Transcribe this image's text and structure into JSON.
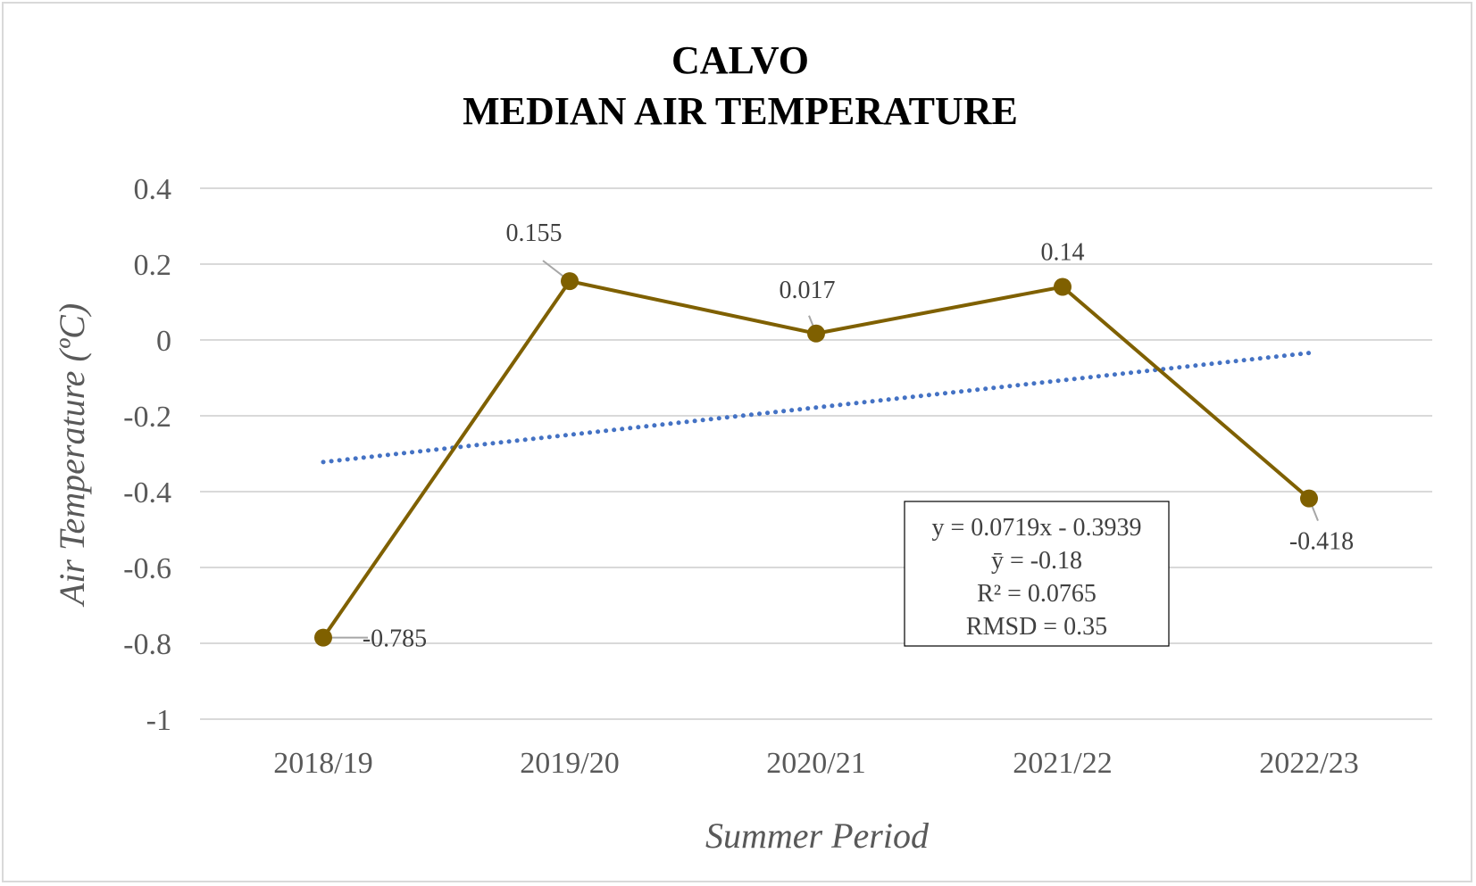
{
  "chart_data": {
    "type": "line",
    "title_lines": [
      "CALVO",
      "MEDIAN AIR TEMPERATURE"
    ],
    "xlabel": "Summer Period",
    "ylabel": "Air Temperature (ºC)",
    "categories": [
      "2018/19",
      "2019/20",
      "2020/21",
      "2021/22",
      "2022/23"
    ],
    "series": [
      {
        "values": [
          -0.785,
          0.155,
          0.017,
          0.14,
          -0.418
        ],
        "data_labels": [
          "-0.785",
          "0.155",
          "0.017",
          "0.14",
          "-0.418"
        ],
        "color": "#7f6000",
        "marker": "circle"
      }
    ],
    "trendline": {
      "type": "linear",
      "slope": 0.0719,
      "intercept": -0.3939,
      "color": "#4472c4",
      "style": "dotted"
    },
    "ylim": [
      -1,
      0.4
    ],
    "yticks": [
      0.4,
      0.2,
      0,
      -0.2,
      -0.4,
      -0.6,
      -0.8,
      -1
    ],
    "ytick_labels": [
      "0.4",
      "0.2",
      "0",
      "-0.2",
      "-0.4",
      "-0.6",
      "-0.8",
      "-1"
    ],
    "grid": true,
    "legend": "none",
    "annotation": {
      "lines": [
        "y = 0.0719x - 0.3939",
        "ȳ = -0.18",
        "R² = 0.0765",
        "RMSD = 0.35"
      ]
    }
  }
}
